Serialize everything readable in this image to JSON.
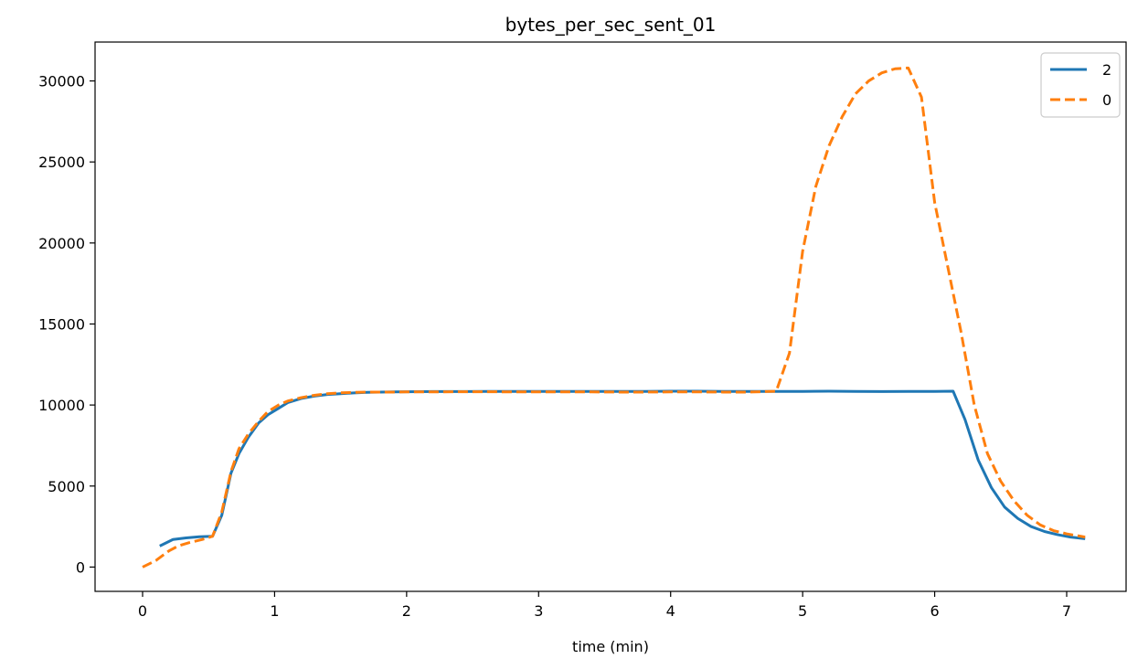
{
  "chart_data": {
    "type": "line",
    "title": "bytes_per_sec_sent_01",
    "xlabel": "time (min)",
    "ylabel": "",
    "xlim": [
      -0.36,
      7.45
    ],
    "ylim": [
      -1500,
      32400
    ],
    "xticks": [
      0,
      1,
      2,
      3,
      4,
      5,
      6,
      7
    ],
    "yticks": [
      0,
      5000,
      10000,
      15000,
      20000,
      25000,
      30000
    ],
    "grid": false,
    "legend_position": "top-right",
    "series": [
      {
        "name": "2",
        "color": "#1f77b4",
        "style": "solid",
        "x": [
          0.13,
          0.23,
          0.33,
          0.43,
          0.53,
          0.6,
          0.67,
          0.73,
          0.8,
          0.88,
          0.95,
          1.03,
          1.1,
          1.2,
          1.3,
          1.4,
          1.5,
          1.6,
          1.7,
          1.8,
          1.9,
          2.0,
          2.2,
          2.4,
          2.6,
          2.8,
          3.0,
          3.2,
          3.4,
          3.6,
          3.8,
          4.0,
          4.2,
          4.4,
          4.6,
          4.8,
          5.0,
          5.2,
          5.4,
          5.6,
          5.8,
          6.0,
          6.14,
          6.23,
          6.33,
          6.43,
          6.53,
          6.63,
          6.73,
          6.83,
          6.93,
          7.03,
          7.14
        ],
        "values": [
          1300,
          1700,
          1800,
          1870,
          1900,
          3200,
          5800,
          7000,
          8000,
          8900,
          9400,
          9800,
          10150,
          10400,
          10550,
          10650,
          10700,
          10750,
          10780,
          10800,
          10810,
          10820,
          10830,
          10830,
          10840,
          10840,
          10840,
          10840,
          10840,
          10840,
          10840,
          10850,
          10850,
          10840,
          10840,
          10840,
          10840,
          10850,
          10840,
          10830,
          10840,
          10840,
          10850,
          9100,
          6600,
          4900,
          3700,
          3000,
          2500,
          2200,
          2000,
          1850,
          1750
        ]
      },
      {
        "name": "0",
        "color": "#ff7f0e",
        "style": "dashed",
        "x": [
          0.0,
          0.1,
          0.2,
          0.27,
          0.35,
          0.45,
          0.53,
          0.6,
          0.67,
          0.73,
          0.8,
          0.88,
          0.95,
          1.03,
          1.1,
          1.2,
          1.3,
          1.4,
          1.5,
          1.6,
          1.7,
          1.8,
          1.9,
          2.0,
          2.2,
          2.4,
          2.6,
          2.8,
          3.0,
          3.2,
          3.4,
          3.6,
          3.8,
          4.0,
          4.2,
          4.4,
          4.6,
          4.8,
          4.9,
          5.0,
          5.1,
          5.2,
          5.3,
          5.4,
          5.5,
          5.6,
          5.7,
          5.8,
          5.9,
          6.0,
          6.1,
          6.2,
          6.3,
          6.4,
          6.5,
          6.6,
          6.7,
          6.8,
          6.9,
          7.0,
          7.14
        ],
        "values": [
          0,
          400,
          1000,
          1300,
          1500,
          1700,
          1900,
          3400,
          5900,
          7300,
          8200,
          9000,
          9600,
          10000,
          10250,
          10450,
          10600,
          10700,
          10750,
          10780,
          10800,
          10800,
          10800,
          10810,
          10810,
          10820,
          10820,
          10810,
          10810,
          10810,
          10810,
          10800,
          10800,
          10810,
          10810,
          10800,
          10800,
          10850,
          13200,
          19500,
          23500,
          26000,
          27800,
          29200,
          30000,
          30500,
          30750,
          30800,
          29000,
          22500,
          18500,
          14500,
          10000,
          7000,
          5300,
          4100,
          3200,
          2600,
          2250,
          2050,
          1850
        ]
      }
    ]
  }
}
